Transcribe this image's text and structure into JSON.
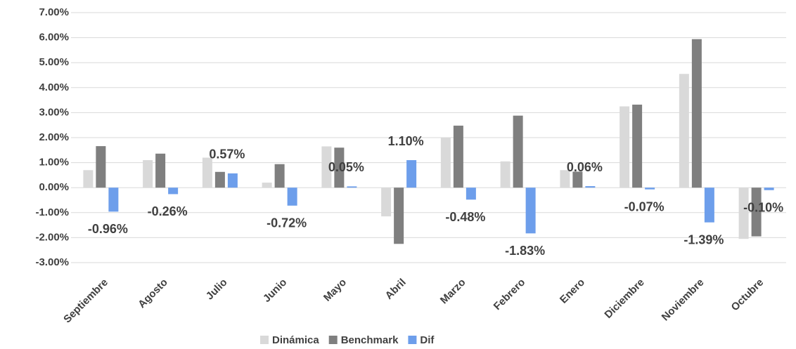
{
  "chart_data": {
    "type": "bar",
    "categories": [
      "Septiembre",
      "Agosto",
      "Julio",
      "Junio",
      "Mayo",
      "Abril",
      "Marzo",
      "Febrero",
      "Enero",
      "Diciembre",
      "Noviembre",
      "Octubre"
    ],
    "series": [
      {
        "name": "Dinámica",
        "color": "#d9d9d9",
        "values": [
          0.7,
          1.1,
          1.2,
          0.2,
          1.65,
          -1.15,
          2.0,
          1.05,
          0.7,
          3.25,
          4.55,
          -2.05
        ]
      },
      {
        "name": "Benchmark",
        "color": "#7f7f7f",
        "values": [
          1.66,
          1.36,
          0.63,
          0.94,
          1.6,
          -2.25,
          2.48,
          2.88,
          0.64,
          3.32,
          5.94,
          -1.95
        ]
      },
      {
        "name": "Dif",
        "color": "#6d9eeb",
        "values": [
          -0.96,
          -0.26,
          0.57,
          -0.72,
          0.05,
          1.1,
          -0.48,
          -1.83,
          0.06,
          -0.07,
          -1.39,
          -0.1
        ],
        "value_labels": [
          "-0.96%",
          "-0.26%",
          "0.57%",
          "-0.72%",
          "0.05%",
          "1.10%",
          "-0.48%",
          "-1.83%",
          "0.06%",
          "-0.07%",
          "-1.39%",
          "-0.10%"
        ]
      }
    ],
    "ylim": [
      -3,
      7
    ],
    "yticks": [
      {
        "value": -3,
        "label": "-3.00%"
      },
      {
        "value": -2,
        "label": "-2.00%"
      },
      {
        "value": -1,
        "label": "-1.00%"
      },
      {
        "value": 0,
        "label": "0.00%"
      },
      {
        "value": 1,
        "label": "1.00%"
      },
      {
        "value": 2,
        "label": "2.00%"
      },
      {
        "value": 3,
        "label": "3.00%"
      },
      {
        "value": 4,
        "label": "4.00%"
      },
      {
        "value": 5,
        "label": "5.00%"
      },
      {
        "value": 6,
        "label": "6.00%"
      },
      {
        "value": 7,
        "label": "7.00%"
      }
    ],
    "grid": true,
    "legend": "bottom"
  }
}
